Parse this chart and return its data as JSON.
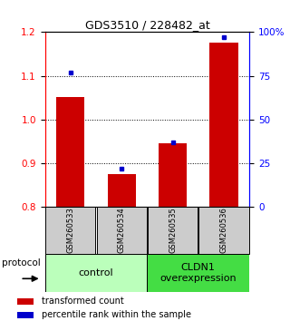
{
  "title": "GDS3510 / 228482_at",
  "samples": [
    "GSM260533",
    "GSM260534",
    "GSM260535",
    "GSM260536"
  ],
  "red_values": [
    1.052,
    0.875,
    0.945,
    1.175
  ],
  "blue_pct": [
    77,
    22,
    37,
    97
  ],
  "ylim_left": [
    0.8,
    1.2
  ],
  "ylim_right": [
    0,
    100
  ],
  "yticks_left": [
    0.8,
    0.9,
    1.0,
    1.1,
    1.2
  ],
  "yticks_right": [
    0,
    25,
    50,
    75,
    100
  ],
  "ytick_labels_right": [
    "0",
    "25",
    "50",
    "75",
    "100%"
  ],
  "grid_lines": [
    0.9,
    1.0,
    1.1
  ],
  "protocol_label": "protocol",
  "bar_color": "#cc0000",
  "dot_color": "#0000cc",
  "bar_width": 0.55,
  "legend_red": "transformed count",
  "legend_blue": "percentile rank within the sample",
  "sample_box_color": "#cccccc",
  "group0_color": "#bbffbb",
  "group1_color": "#44dd44",
  "group0_label": "control",
  "group1_label": "CLDN1\noverexpression",
  "title_fontsize": 9,
  "tick_fontsize": 7.5,
  "legend_fontsize": 7,
  "sample_fontsize": 6,
  "group_fontsize": 8
}
